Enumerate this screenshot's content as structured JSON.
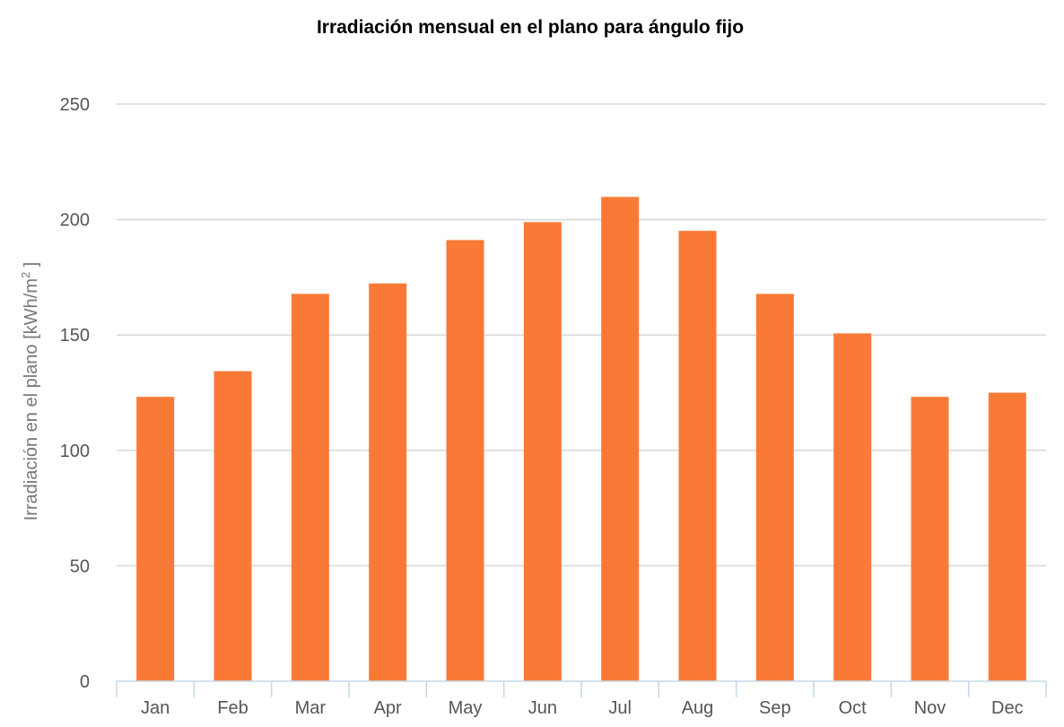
{
  "chart_data": {
    "type": "bar",
    "title": "Irradiación mensual en el plano para ángulo fijo",
    "xlabel": "",
    "ylabel": "Irradiación en el plano [kWh/m",
    "ylabel_superscript": "2",
    "ylabel_suffix": " ]",
    "categories": [
      "Jan",
      "Feb",
      "Mar",
      "Apr",
      "May",
      "Jun",
      "Jul",
      "Aug",
      "Sep",
      "Oct",
      "Nov",
      "Dec"
    ],
    "values": [
      123.2,
      134.3,
      167.8,
      172.3,
      191.1,
      198.9,
      209.8,
      195.1,
      167.8,
      150.7,
      123.2,
      125.0
    ],
    "ylim": [
      0,
      250
    ],
    "yticks": [
      0,
      50,
      100,
      150,
      200,
      250
    ],
    "grid": true,
    "legend": "none",
    "colors": {
      "bar": "#f97a36",
      "grid": "#d8d8d8",
      "axis": "#c5d8e8"
    }
  }
}
